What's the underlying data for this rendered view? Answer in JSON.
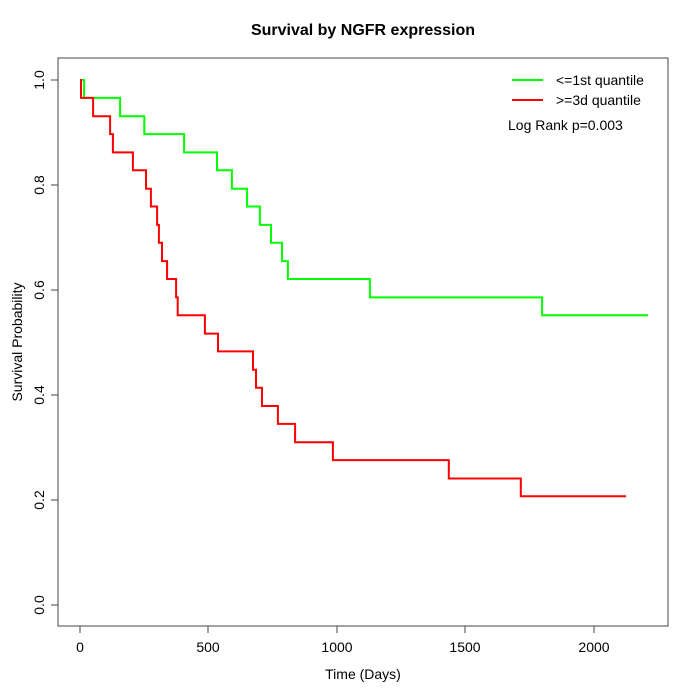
{
  "chart_data": {
    "type": "line",
    "step": true,
    "title": "Survival by NGFR expression",
    "xlabel": "Time (Days)",
    "ylabel": "Survival Probability",
    "xlim": [
      0,
      2250
    ],
    "ylim": [
      0.0,
      1.0
    ],
    "grid": false,
    "legend_position": "top-right",
    "annotation": "Log Rank p=0.003",
    "x_ticks": [
      {
        "value": 0,
        "label": "0"
      },
      {
        "value": 500,
        "label": "500"
      },
      {
        "value": 1000,
        "label": "1000"
      },
      {
        "value": 1500,
        "label": "1500"
      },
      {
        "value": 2000,
        "label": "2000"
      }
    ],
    "y_ticks": [
      {
        "value": 1.0,
        "label": "1.0"
      },
      {
        "value": 0.8,
        "label": "0.8"
      },
      {
        "value": 0.6,
        "label": "0.6"
      },
      {
        "value": 0.4,
        "label": "0.4"
      },
      {
        "value": 0.2,
        "label": "0.2"
      },
      {
        "value": 0.0,
        "label": "0.0"
      }
    ],
    "series": [
      {
        "name": "<=1st quantile",
        "color": "#00ff00",
        "points": [
          [
            0,
            1.0
          ],
          [
            16,
            0.966
          ],
          [
            156,
            0.931
          ],
          [
            250,
            0.897
          ],
          [
            405,
            0.862
          ],
          [
            533,
            0.828
          ],
          [
            591,
            0.793
          ],
          [
            650,
            0.759
          ],
          [
            700,
            0.724
          ],
          [
            743,
            0.69
          ],
          [
            786,
            0.655
          ],
          [
            809,
            0.621
          ],
          [
            1128,
            0.586
          ],
          [
            1798,
            0.552
          ]
        ],
        "end_time": 2210
      },
      {
        "name": ">=3d quantile",
        "color": "#ff0000",
        "points": [
          [
            0,
            1.0
          ],
          [
            4,
            0.966
          ],
          [
            51,
            0.931
          ],
          [
            117,
            0.897
          ],
          [
            128,
            0.862
          ],
          [
            206,
            0.828
          ],
          [
            257,
            0.793
          ],
          [
            276,
            0.759
          ],
          [
            300,
            0.724
          ],
          [
            307,
            0.69
          ],
          [
            319,
            0.655
          ],
          [
            339,
            0.621
          ],
          [
            374,
            0.586
          ],
          [
            380,
            0.552
          ],
          [
            486,
            0.517
          ],
          [
            537,
            0.483
          ],
          [
            673,
            0.448
          ],
          [
            685,
            0.414
          ],
          [
            708,
            0.379
          ],
          [
            770,
            0.345
          ],
          [
            837,
            0.31
          ],
          [
            984,
            0.276
          ],
          [
            1435,
            0.241
          ],
          [
            1715,
            0.207
          ]
        ],
        "end_time": 2125
      }
    ]
  }
}
